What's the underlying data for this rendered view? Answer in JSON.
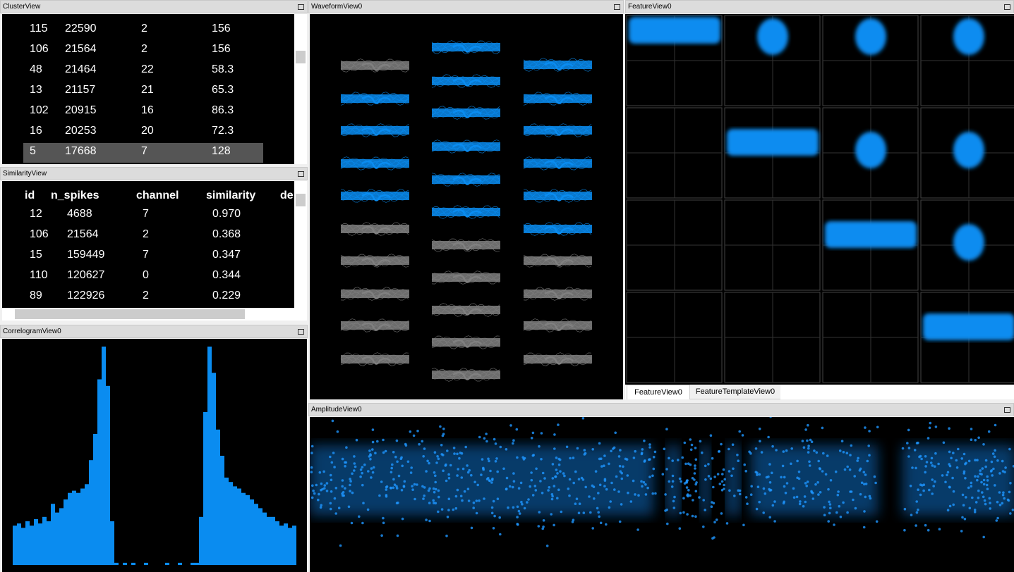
{
  "cluster_view": {
    "title": "ClusterView",
    "rows": [
      [
        "115",
        "22590",
        "2",
        "156"
      ],
      [
        "106",
        "21564",
        "2",
        "156"
      ],
      [
        "48",
        "21464",
        "22",
        "58.3"
      ],
      [
        "13",
        "21157",
        "21",
        "65.3"
      ],
      [
        "102",
        "20915",
        "16",
        "86.3"
      ],
      [
        "16",
        "20253",
        "20",
        "72.3"
      ],
      [
        "5",
        "17668",
        "7",
        "128"
      ]
    ]
  },
  "similarity_view": {
    "title": "SimilarityView",
    "header": [
      "id",
      "n_spikes",
      "channel",
      "similarity",
      "de"
    ],
    "rows": [
      [
        "12",
        "4688",
        "7",
        "0.970"
      ],
      [
        "106",
        "21564",
        "2",
        "0.368"
      ],
      [
        "15",
        "159449",
        "7",
        "0.347"
      ],
      [
        "110",
        "120627",
        "0",
        "0.344"
      ],
      [
        "89",
        "122926",
        "2",
        "0.229"
      ]
    ]
  },
  "correlogram_view": {
    "title": "CorrelogramView0",
    "color": "#0a8cf0",
    "values": [
      18,
      19,
      17,
      20,
      18,
      21,
      19,
      22,
      20,
      28,
      24,
      26,
      30,
      33,
      34,
      33,
      35,
      37,
      48,
      60,
      85,
      100,
      82,
      20,
      1,
      0,
      1,
      0,
      1,
      0,
      0,
      1,
      0,
      0,
      0,
      0,
      1,
      0,
      0,
      1,
      0,
      0,
      1,
      1,
      22,
      70,
      100,
      88,
      62,
      50,
      40,
      38,
      36,
      35,
      33,
      32,
      30,
      28,
      26,
      24,
      22,
      22,
      20,
      18,
      19,
      17,
      18
    ]
  },
  "waveform_view": {
    "title": "WaveformView0"
  },
  "feature_view": {
    "title": "FeatureView0",
    "tabs": [
      "FeatureView0",
      "FeatureTemplateView0"
    ]
  },
  "amplitude_view": {
    "title": "AmplitudeView0"
  }
}
